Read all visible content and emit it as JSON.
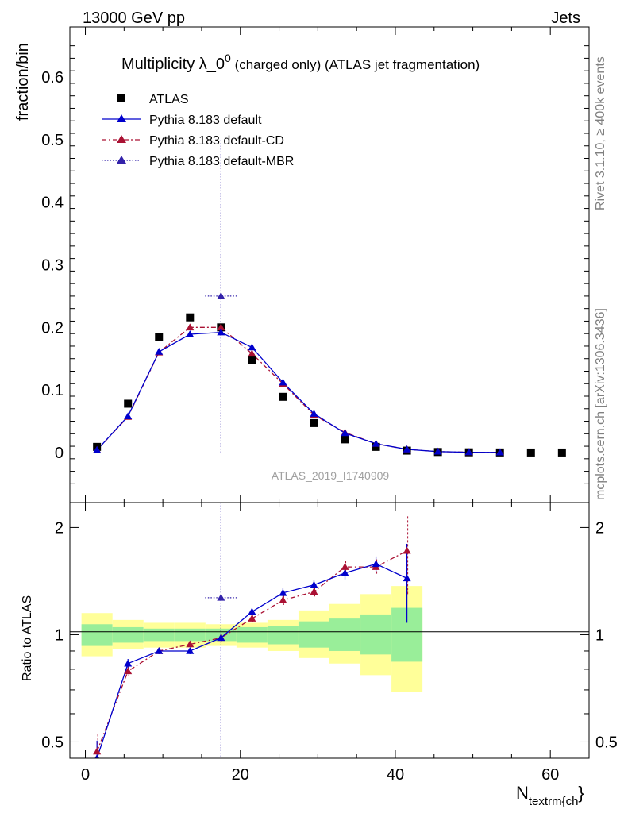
{
  "header": {
    "energy_label": "13000 GeV pp",
    "process_label": "Jets"
  },
  "side_labels": {
    "rivet": "Rivet 3.1.10, ≥ 400k events",
    "mcplots": "mcplots.cern.ch [arXiv:1306.3436]"
  },
  "chart_data": {
    "type": "scatter",
    "title": "Multiplicity λ_0",
    "title_sup": "0",
    "title_suffix": " (charged only) (ATLAS jet fragmentation)",
    "analysis_id": "ATLAS_2019_I1740909",
    "xlabel_main": "N",
    "xlabel_sub": "textrm{ch",
    "xlabel_close": "}",
    "ylabel": "fraction/bin",
    "ratio_ylabel": "Ratio to ATLAS",
    "xlim": [
      -2,
      65
    ],
    "ylim": [
      -0.08,
      0.68
    ],
    "ratio_ylim": [
      0.45,
      2.35
    ],
    "x_ticks": [
      0,
      20,
      40,
      60
    ],
    "y_ticks": [
      0,
      0.1,
      0.2,
      0.3,
      0.4,
      0.5,
      0.6
    ],
    "ratio_ticks": [
      0.5,
      1,
      2
    ],
    "legend": {
      "data_label": "ATLAS",
      "default_label": "Pythia 8.183 default",
      "cd_label": "Pythia 8.183 default-CD",
      "mbr_label": "Pythia 8.183 default-MBR"
    },
    "colors": {
      "data": "#000000",
      "default": "#0000cc",
      "cd": "#aa1133",
      "mbr": "#3322aa",
      "band_inner": "#99ee99",
      "band_outer": "#ffff99"
    },
    "data": {
      "name": "ATLAS",
      "x": [
        1.5,
        5.5,
        9.5,
        13.5,
        17.5,
        21.5,
        25.5,
        29.5,
        33.5,
        37.5,
        41.5,
        45.5,
        49.5,
        53.5,
        57.5,
        61.5
      ],
      "y": [
        0.009,
        0.078,
        0.184,
        0.216,
        0.2,
        0.148,
        0.089,
        0.047,
        0.021,
        0.009,
        0.003,
        0.0008,
        0.0003,
        0.0001,
        0.0,
        0.0
      ]
    },
    "series": [
      {
        "name": "Pythia 8.183 default",
        "x": [
          1.5,
          5.5,
          9.5,
          13.5,
          17.5,
          21.5,
          25.5,
          29.5,
          33.5,
          37.5,
          41.5,
          45.5,
          49.5,
          53.5
        ],
        "y": [
          0.004,
          0.058,
          0.161,
          0.189,
          0.192,
          0.168,
          0.112,
          0.062,
          0.031,
          0.014,
          0.005,
          0.0015,
          0.0005,
          0.0002
        ],
        "ratio": [
          0.45,
          0.83,
          0.9,
          0.9,
          0.98,
          1.16,
          1.31,
          1.38,
          1.49,
          1.58,
          1.44
        ]
      },
      {
        "name": "Pythia 8.183 default-CD",
        "x": [
          1.5,
          5.5,
          9.5,
          13.5,
          17.5,
          21.5,
          25.5,
          29.5,
          33.5,
          37.5,
          41.5,
          45.5,
          49.5,
          53.5
        ],
        "y": [
          0.004,
          0.057,
          0.16,
          0.2,
          0.2,
          0.158,
          0.11,
          0.06,
          0.032,
          0.014,
          0.005,
          0.0015,
          0.0005,
          0.0002
        ],
        "ratio": [
          0.47,
          0.79,
          0.9,
          0.94,
          0.98,
          1.11,
          1.25,
          1.32,
          1.55,
          1.55,
          1.72
        ]
      },
      {
        "name": "Pythia 8.183 default-MBR",
        "x": [
          17.5
        ],
        "y": [
          0.25
        ],
        "ratio": [
          1.27
        ]
      }
    ],
    "ratio_band": {
      "x_edges": [
        -0.5,
        3.5,
        7.5,
        11.5,
        15.5,
        19.5,
        23.5,
        27.5,
        31.5,
        35.5,
        39.5,
        43.5
      ],
      "inner_lo": [
        0.93,
        0.95,
        0.96,
        0.96,
        0.96,
        0.95,
        0.94,
        0.92,
        0.9,
        0.88,
        0.84
      ],
      "inner_hi": [
        1.07,
        1.05,
        1.04,
        1.04,
        1.04,
        1.05,
        1.06,
        1.09,
        1.11,
        1.14,
        1.19
      ],
      "outer_lo": [
        0.87,
        0.91,
        0.92,
        0.92,
        0.93,
        0.92,
        0.9,
        0.86,
        0.83,
        0.77,
        0.69
      ],
      "outer_hi": [
        1.15,
        1.1,
        1.08,
        1.08,
        1.07,
        1.08,
        1.1,
        1.17,
        1.22,
        1.3,
        1.37
      ]
    }
  }
}
